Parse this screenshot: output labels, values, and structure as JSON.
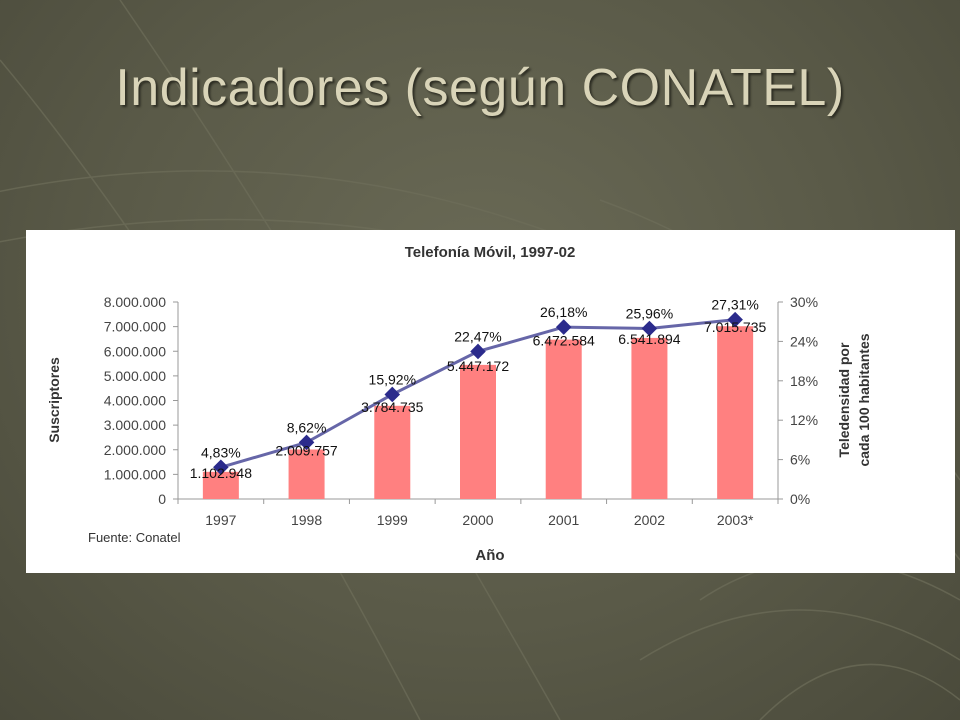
{
  "slide": {
    "title": "Indicadores (según CONATEL)"
  },
  "colors": {
    "background": "#5a5a48",
    "title": "#d9d4b8",
    "bar": "#ff8080",
    "line": "#6666a8",
    "marker": "#2b2b8c",
    "panel": "#ffffff"
  },
  "chart_data": {
    "type": "bar",
    "title": "Telefonía Móvil, 1997-02",
    "xlabel": "Año",
    "ylabel": "Suscriptores",
    "y2label_line1": "Teledensidad por",
    "y2label_line2": "cada 100 habitantes",
    "source": "Fuente: Conatel",
    "categories": [
      "1997",
      "1998",
      "1999",
      "2000",
      "2001",
      "2002",
      "2003*"
    ],
    "ylim": [
      0,
      8000000
    ],
    "y_ticks": [
      "0",
      "1.000.000",
      "2.000.000",
      "3.000.000",
      "4.000.000",
      "5.000.000",
      "6.000.000",
      "7.000.000",
      "8.000.000"
    ],
    "y2lim": [
      0,
      30
    ],
    "y2_ticks": [
      "0%",
      "6%",
      "12%",
      "18%",
      "24%",
      "30%"
    ],
    "grid": false,
    "legend": "none",
    "series": [
      {
        "type": "bar",
        "axis": "left",
        "values": [
          1102948,
          2009757,
          3784735,
          5447172,
          6472584,
          6541894,
          7015735
        ],
        "labels": [
          "1.102.948",
          "2.009.757",
          "3.784.735",
          "5.447.172",
          "6.472.584",
          "6.541.894",
          "7.015.735"
        ]
      },
      {
        "type": "line",
        "axis": "right",
        "values": [
          4.83,
          8.62,
          15.92,
          22.47,
          26.18,
          25.96,
          27.31
        ],
        "labels": [
          "4,83%",
          "8,62%",
          "15,92%",
          "22,47%",
          "26,18%",
          "25,96%",
          "27,31%"
        ]
      }
    ]
  }
}
